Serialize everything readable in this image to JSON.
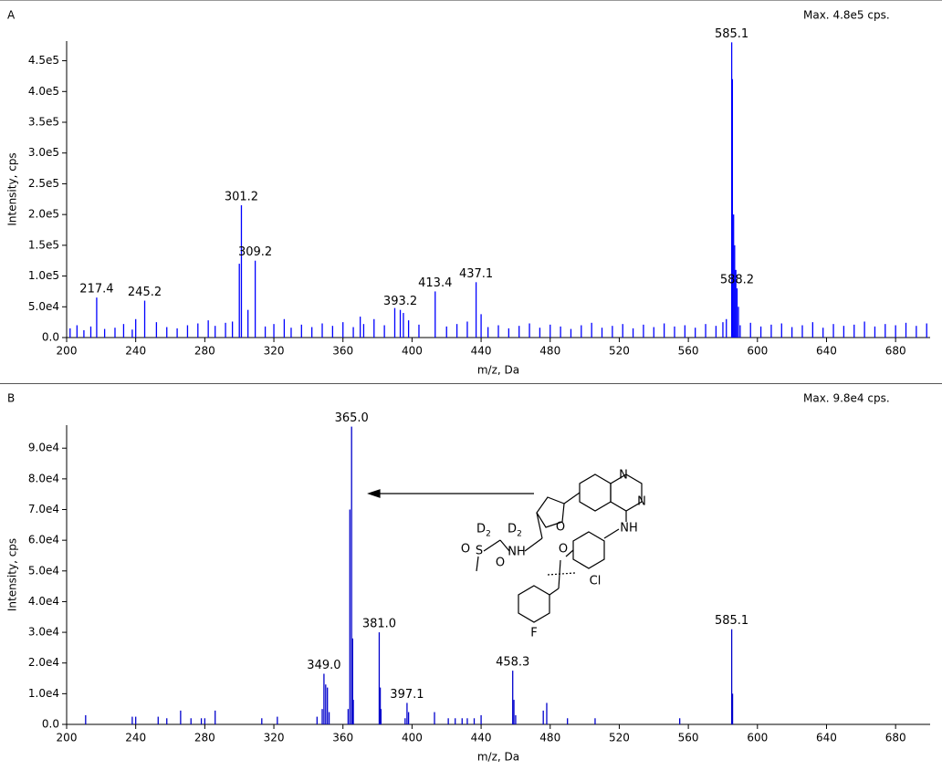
{
  "chart_data": [
    {
      "type": "stem",
      "panel": "A",
      "max_label": "Max. 4.8e5 cps.",
      "x_label": "m/z, Da",
      "y_label": "Intensity, cps",
      "color": "#0000ff",
      "xlim": [
        200,
        700
      ],
      "xticks": [
        200,
        240,
        280,
        320,
        360,
        400,
        440,
        480,
        520,
        560,
        600,
        640,
        680
      ],
      "ylim": [
        0,
        482000
      ],
      "yticks": [
        {
          "value": 0,
          "label": "0.0"
        },
        {
          "value": 50000,
          "label": "5.0e4"
        },
        {
          "value": 100000,
          "label": "1.0e5"
        },
        {
          "value": 150000,
          "label": "1.5e5"
        },
        {
          "value": 200000,
          "label": "2.0e5"
        },
        {
          "value": 250000,
          "label": "2.5e5"
        },
        {
          "value": 300000,
          "label": "3.0e5"
        },
        {
          "value": 350000,
          "label": "3.5e5"
        },
        {
          "value": 400000,
          "label": "4.0e5"
        },
        {
          "value": 450000,
          "label": "4.5e5"
        }
      ],
      "x": [
        217.4,
        245.2,
        300.0,
        301.2,
        309.2,
        390.0,
        393.2,
        413.4,
        437.1,
        585.1,
        585.5,
        586.2,
        586.8,
        587.5,
        588.2,
        589.0,
        590.0,
        202,
        206,
        210,
        214,
        222,
        228,
        233,
        238,
        252,
        258,
        264,
        270,
        276,
        282,
        286,
        292,
        296,
        315,
        320,
        326,
        330,
        336,
        342,
        348,
        354,
        360,
        366,
        372,
        378,
        384,
        398,
        404,
        420,
        426,
        432,
        444,
        450,
        456,
        462,
        468,
        474,
        480,
        486,
        492,
        498,
        504,
        510,
        516,
        522,
        528,
        534,
        540,
        546,
        552,
        558,
        564,
        570,
        576,
        596,
        602,
        608,
        614,
        620,
        626,
        632,
        638,
        644,
        650,
        656,
        662,
        668,
        674,
        680,
        686,
        692,
        698,
        370,
        395,
        240,
        305,
        440,
        580,
        582
      ],
      "values": [
        65000,
        60000,
        120000,
        215000,
        125000,
        48000,
        45000,
        75000,
        90000,
        480000,
        420000,
        200000,
        150000,
        110000,
        80000,
        50000,
        20000,
        15000,
        20000,
        12000,
        18000,
        14000,
        16000,
        22000,
        13000,
        25000,
        17000,
        15000,
        20000,
        23000,
        28000,
        19000,
        24000,
        26000,
        18000,
        22000,
        30000,
        16000,
        21000,
        17000,
        23000,
        19000,
        25000,
        17000,
        22000,
        30000,
        20000,
        28000,
        21000,
        18000,
        22000,
        26000,
        17000,
        20000,
        15000,
        19000,
        23000,
        16000,
        21000,
        18000,
        14000,
        20000,
        24000,
        16000,
        19000,
        22000,
        15000,
        21000,
        17000,
        23000,
        18000,
        20000,
        16000,
        22000,
        19000,
        24000,
        18000,
        21000,
        23000,
        17000,
        20000,
        25000,
        16000,
        22000,
        19000,
        21000,
        26000,
        18000,
        22000,
        20000,
        24000,
        19000,
        23000,
        34000,
        40000,
        30000,
        45000,
        38000,
        25000,
        30000
      ],
      "annotations": [
        {
          "label": "217.4",
          "x": 217.4,
          "y": 65000
        },
        {
          "label": "245.2",
          "x": 245.2,
          "y": 60000
        },
        {
          "label": "301.2",
          "x": 301.2,
          "y": 215000
        },
        {
          "label": "309.2",
          "x": 309.2,
          "y": 125000
        },
        {
          "label": "393.2",
          "x": 393.2,
          "y": 45000
        },
        {
          "label": "413.4",
          "x": 413.4,
          "y": 75000
        },
        {
          "label": "437.1",
          "x": 437.1,
          "y": 90000
        },
        {
          "label": "585.1",
          "x": 585.1,
          "y": 480000
        },
        {
          "label": "588.2",
          "x": 588.2,
          "y": 80000
        }
      ]
    },
    {
      "type": "stem",
      "panel": "B",
      "max_label": "Max. 9.8e4 cps.",
      "x_label": "m/z, Da",
      "y_label": "Intensity, cps",
      "color": "#0000cc",
      "xlim": [
        200,
        700
      ],
      "xticks": [
        200,
        240,
        280,
        320,
        360,
        400,
        440,
        480,
        520,
        560,
        600,
        640,
        680
      ],
      "ylim": [
        0,
        97500
      ],
      "yticks": [
        {
          "value": 0,
          "label": "0.0"
        },
        {
          "value": 10000,
          "label": "1.0e4"
        },
        {
          "value": 20000,
          "label": "2.0e4"
        },
        {
          "value": 30000,
          "label": "3.0e4"
        },
        {
          "value": 40000,
          "label": "4.0e4"
        },
        {
          "value": 50000,
          "label": "5.0e4"
        },
        {
          "value": 60000,
          "label": "6.0e4"
        },
        {
          "value": 70000,
          "label": "7.0e4"
        },
        {
          "value": 80000,
          "label": "8.0e4"
        },
        {
          "value": 90000,
          "label": "9.0e4"
        }
      ],
      "x": [
        211,
        238,
        240,
        253,
        258,
        266,
        272,
        278,
        280,
        286,
        313,
        322,
        345,
        348,
        349.0,
        350,
        351,
        352,
        363,
        364,
        365.0,
        365.6,
        366,
        381.0,
        381.6,
        382,
        396,
        397.1,
        398,
        413,
        421,
        425,
        429,
        432,
        436,
        440,
        458.3,
        459,
        460,
        476,
        478,
        490,
        506,
        555,
        585.1,
        585.6
      ],
      "values": [
        3000,
        2500,
        2500,
        2500,
        2000,
        4500,
        2000,
        2000,
        2000,
        4500,
        2000,
        2500,
        2500,
        5000,
        16500,
        13000,
        12000,
        4000,
        5000,
        70000,
        97000,
        28000,
        8000,
        30000,
        12000,
        5000,
        2000,
        7000,
        4000,
        4000,
        2000,
        2000,
        2000,
        2000,
        2000,
        3000,
        17500,
        8000,
        3000,
        4500,
        7000,
        2000,
        2000,
        2000,
        31000,
        10000
      ],
      "annotations": [
        {
          "label": "365.0",
          "x": 365.0,
          "y": 97000
        },
        {
          "label": "349.0",
          "x": 349.0,
          "y": 16500
        },
        {
          "label": "381.0",
          "x": 381.0,
          "y": 30000
        },
        {
          "label": "397.1",
          "x": 397.1,
          "y": 7000
        },
        {
          "label": "458.3",
          "x": 458.3,
          "y": 17500
        },
        {
          "label": "585.1",
          "x": 585.1,
          "y": 31000
        }
      ]
    }
  ],
  "structure": {
    "labels": [
      "N",
      "N",
      "NH",
      "O",
      "O",
      "Cl",
      "F",
      "NH",
      "S",
      "O",
      "O",
      "D",
      "2",
      "D",
      "2"
    ]
  }
}
